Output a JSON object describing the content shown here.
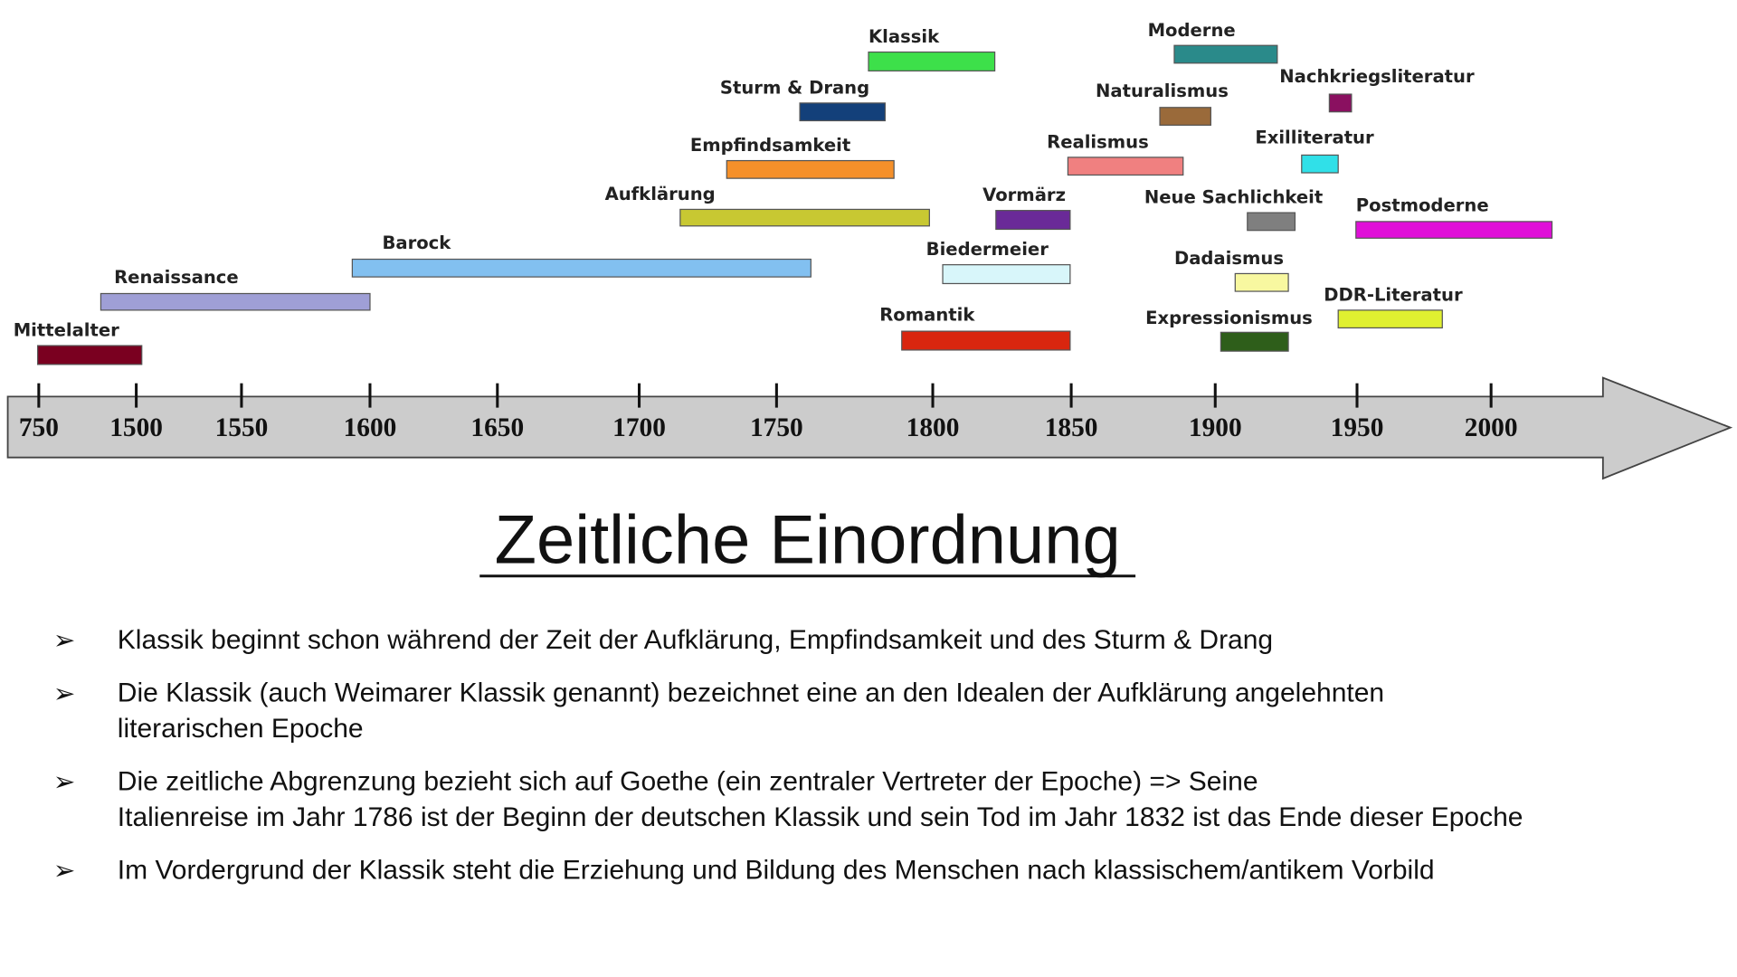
{
  "timeline": {
    "years": [
      "750",
      "1500",
      "1550",
      "1600",
      "1650",
      "1700",
      "1750",
      "1800",
      "1850",
      "1900",
      "1950",
      "2000"
    ],
    "epochs": [
      {
        "label": "Mittelalter",
        "color": "#7a0020"
      },
      {
        "label": "Renaissance",
        "color": "#9f9fd6"
      },
      {
        "label": "Barock",
        "color": "#82c0f0"
      },
      {
        "label": "Aufklärung",
        "color": "#c8c832"
      },
      {
        "label": "Empfindsamkeit",
        "color": "#f5902a"
      },
      {
        "label": "Sturm & Drang",
        "color": "#13407a"
      },
      {
        "label": "Klassik",
        "color": "#3de04a"
      },
      {
        "label": "Romantik",
        "color": "#d9260f"
      },
      {
        "label": "Biedermeier",
        "color": "#d8f6fa"
      },
      {
        "label": "Vormärz",
        "color": "#6a2a98"
      },
      {
        "label": "Realismus",
        "color": "#f08080"
      },
      {
        "label": "Naturalismus",
        "color": "#9a6a3a"
      },
      {
        "label": "Moderne",
        "color": "#2a8a8a"
      },
      {
        "label": "Neue Sachlichkeit",
        "color": "#7f7f7f"
      },
      {
        "label": "Dadaismus",
        "color": "#f8f8a0"
      },
      {
        "label": "Expressionismus",
        "color": "#2e5e1a"
      },
      {
        "label": "Nachkriegsliteratur",
        "color": "#8a1060"
      },
      {
        "label": "Exilliteratur",
        "color": "#30e0e8"
      },
      {
        "label": "Postmoderne",
        "color": "#e010d8"
      },
      {
        "label": "DDR-Literatur",
        "color": "#e0f030"
      }
    ]
  },
  "heading": "Zeitliche Einordnung",
  "bullets": [
    {
      "lines": [
        "Klassik beginnt schon während der Zeit der Aufklärung, Empfindsamkeit und des Sturm & Drang"
      ]
    },
    {
      "lines": [
        "Die Klassik (auch Weimarer Klassik genannt) bezeichnet eine an den Idealen der Aufklärung angelehnten",
        "literarischen Epoche"
      ]
    },
    {
      "lines": [
        "Die zeitliche Abgrenzung bezieht sich auf Goethe (ein zentraler Vertreter der Epoche) => Seine",
        "Italienreise im Jahr 1786 ist der Beginn der deutschen Klassik und sein Tod im Jahr 1832 ist das Ende dieser Epoche"
      ]
    },
    {
      "lines": [
        "Im Vordergrund der Klassik steht die Erziehung und Bildung des Menschen nach klassischem/antikem Vorbild"
      ]
    }
  ]
}
